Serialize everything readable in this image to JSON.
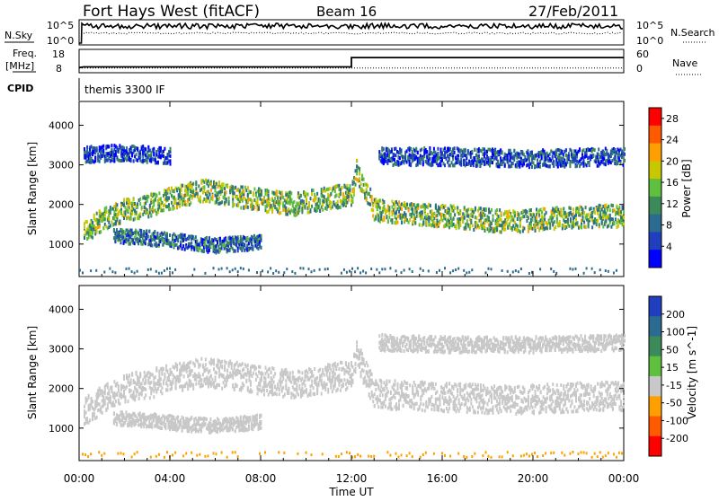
{
  "header": {
    "station": "Fort Hays West (fitACF)",
    "beam": "Beam 16",
    "date": "27/Feb/2011"
  },
  "top_panels": {
    "nsky_label": "N.Sky",
    "nsearch_label": "N.Search",
    "freq_label": "Freq.",
    "freq_unit": "[MHz]",
    "nave_label": "Nave",
    "cpid_label": "CPID",
    "cpid_value": "themis 3300 IF",
    "noise_ticks_left": [
      "10^5",
      "10^0"
    ],
    "noise_ticks_right": [
      "10^5",
      "10^0"
    ],
    "freq_ticks": [
      "18",
      "8"
    ],
    "nave_ticks": [
      "60",
      "0"
    ],
    "freq_series": {
      "hours": [
        0,
        0.2,
        12.0,
        12.0,
        24
      ],
      "mhz": [
        10.2,
        10.5,
        10.5,
        14.5,
        14.5
      ]
    },
    "nave_series": {
      "hours": [
        0,
        24
      ],
      "values": [
        12,
        12
      ]
    }
  },
  "chart_data": [
    {
      "type": "heatmap",
      "title": "Power",
      "xlabel": "Time UT",
      "ylabel": "Slant Range [km]",
      "x_ticks": [
        "00:00",
        "04:00",
        "08:00",
        "12:00",
        "16:00",
        "20:00",
        "00:00"
      ],
      "y_ticks": [
        "1000",
        "2000",
        "3000",
        "4000"
      ],
      "xlim_hours": [
        0,
        24
      ],
      "ylim_km": [
        180,
        4600
      ],
      "colorbar": {
        "label": "Power [dB]",
        "ticks": [
          "4",
          "8",
          "12",
          "16",
          "20",
          "24",
          "28"
        ],
        "range": [
          0,
          30
        ],
        "colors": [
          "#0000ff",
          "#1f3fbf",
          "#2b6b8f",
          "#3c8a5a",
          "#5fbf3f",
          "#c8c800",
          "#ffa000",
          "#ff5a00",
          "#ff0000"
        ]
      },
      "bands": [
        {
          "name": "upper band",
          "points": [
            [
              0.2,
              1350
            ],
            [
              1.0,
              1650
            ],
            [
              2.0,
              1900
            ],
            [
              3.0,
              2000
            ],
            [
              4.0,
              2200
            ],
            [
              5.5,
              2400
            ],
            [
              7.0,
              2250
            ],
            [
              8.0,
              2150
            ],
            [
              9.5,
              2050
            ],
            [
              11.0,
              2200
            ],
            [
              12.0,
              2300
            ],
            [
              12.2,
              2900
            ],
            [
              13.0,
              1900
            ],
            [
              15.0,
              1800
            ],
            [
              17.0,
              1700
            ],
            [
              19.0,
              1600
            ],
            [
              21.0,
              1700
            ],
            [
              23.0,
              1750
            ],
            [
              24.0,
              1750
            ]
          ],
          "width_km": 280,
          "power_db": 14
        },
        {
          "name": "lower band",
          "points": [
            [
              1.5,
              1250
            ],
            [
              3.0,
              1200
            ],
            [
              4.5,
              1100
            ],
            [
              6.0,
              1000
            ],
            [
              7.0,
              1050
            ],
            [
              8.0,
              1100
            ]
          ],
          "width_km": 180,
          "power_db": 8
        },
        {
          "name": "far range",
          "points": [
            [
              13.2,
              3250
            ],
            [
              16.0,
              3250
            ],
            [
              20.0,
              3200
            ],
            [
              24.0,
              3250
            ]
          ],
          "width_km": 220,
          "power_db": 6
        },
        {
          "name": "early far range",
          "points": [
            [
              0.2,
              3300
            ],
            [
              2.0,
              3350
            ],
            [
              4.0,
              3250
            ]
          ],
          "width_km": 200,
          "power_db": 5
        }
      ]
    },
    {
      "type": "heatmap",
      "title": "Velocity",
      "xlabel": "Time UT",
      "ylabel": "Slant Range [km]",
      "x_ticks": [
        "00:00",
        "04:00",
        "08:00",
        "12:00",
        "16:00",
        "20:00",
        "00:00"
      ],
      "y_ticks": [
        "1000",
        "2000",
        "3000",
        "4000"
      ],
      "xlim_hours": [
        0,
        24
      ],
      "ylim_km": [
        180,
        4600
      ],
      "colorbar": {
        "label": "Velocity [m s^-1]",
        "ticks": [
          "200",
          "100",
          "50",
          "15",
          "-15",
          "-50",
          "-100",
          "-200"
        ],
        "range": [
          -250,
          250
        ],
        "colors": [
          "#1f3fbf",
          "#2b6b8f",
          "#3c8a5a",
          "#5fbf3f",
          "#c8c8c8",
          "#ffa000",
          "#ff5a00",
          "#ff0000"
        ]
      },
      "bands": [
        {
          "name": "upper band",
          "points": [
            [
              0.2,
              1450
            ],
            [
              1.0,
              1750
            ],
            [
              2.0,
              2050
            ],
            [
              3.0,
              2150
            ],
            [
              4.0,
              2300
            ],
            [
              5.5,
              2450
            ],
            [
              7.0,
              2350
            ],
            [
              8.0,
              2250
            ],
            [
              9.5,
              2150
            ],
            [
              11.0,
              2300
            ],
            [
              12.0,
              2400
            ],
            [
              12.2,
              2900
            ],
            [
              13.0,
              1900
            ],
            [
              15.0,
              1850
            ],
            [
              17.0,
              1800
            ],
            [
              19.0,
              1750
            ],
            [
              21.0,
              1800
            ],
            [
              23.0,
              1850
            ],
            [
              24.0,
              1850
            ]
          ],
          "width_km": 360,
          "velocity": 0
        },
        {
          "name": "lower band",
          "points": [
            [
              1.5,
              1300
            ],
            [
              3.0,
              1250
            ],
            [
              4.5,
              1150
            ],
            [
              6.0,
              1100
            ],
            [
              7.0,
              1150
            ],
            [
              8.0,
              1200
            ]
          ],
          "width_km": 180,
          "velocity": -40
        },
        {
          "name": "far range",
          "points": [
            [
              13.2,
              3200
            ],
            [
              16.0,
              3150
            ],
            [
              20.0,
              3150
            ],
            [
              24.0,
              3200
            ]
          ],
          "width_km": 200,
          "velocity": 0
        }
      ]
    }
  ],
  "colors": {
    "frame": "#000000",
    "background": "#ffffff",
    "ground_scatter": "#c8c8c8"
  }
}
